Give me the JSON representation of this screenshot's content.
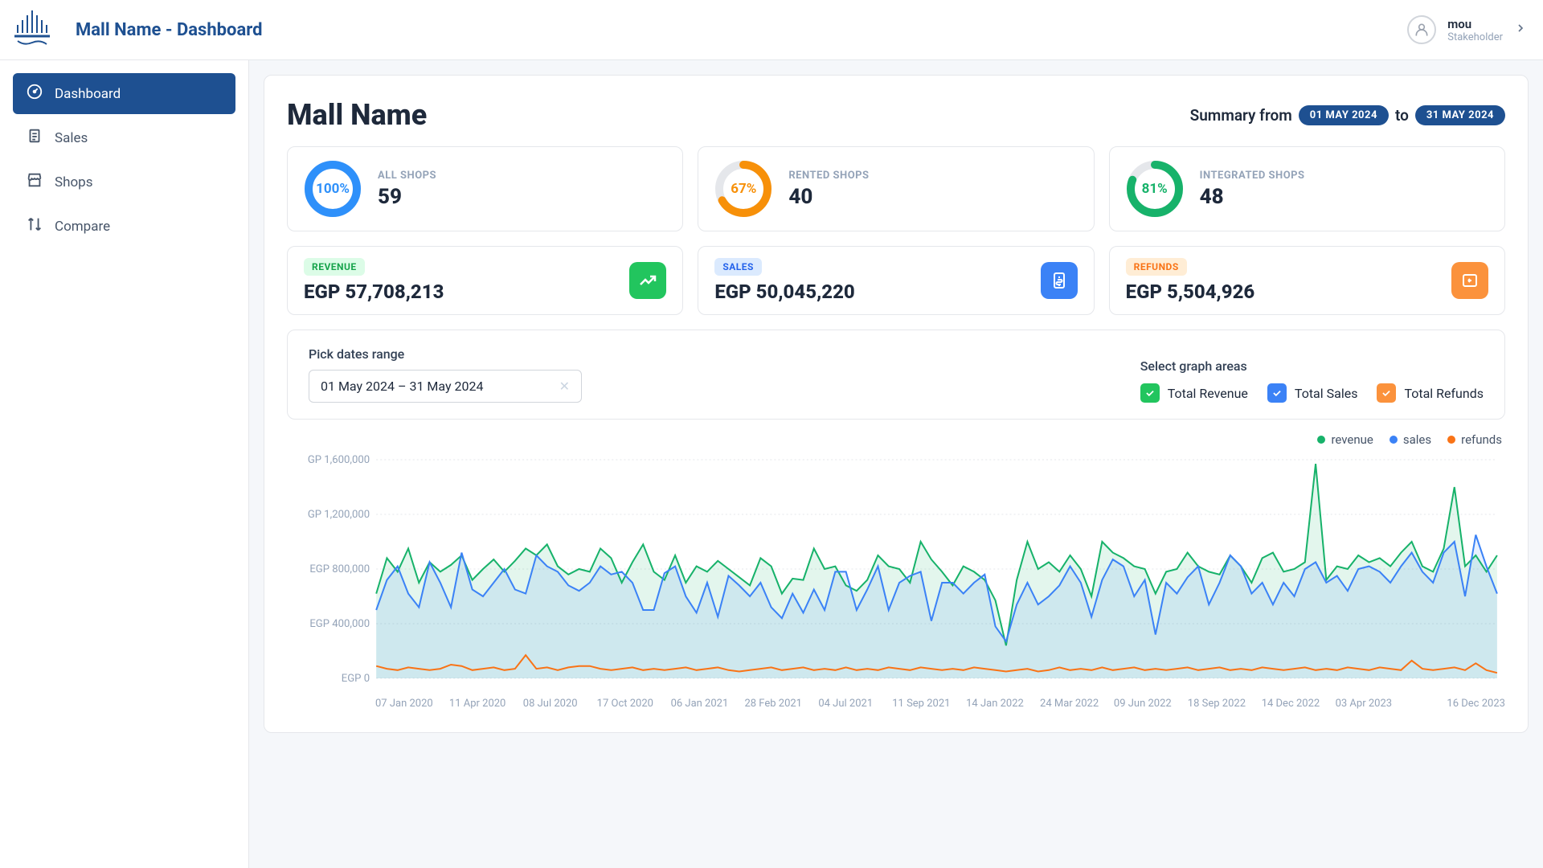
{
  "header": {
    "title": "Mall Name - Dashboard",
    "user": {
      "name": "mou",
      "role": "Stakeholder"
    }
  },
  "sidebar": {
    "items": [
      {
        "label": "Dashboard",
        "icon": "speedometer",
        "active": true
      },
      {
        "label": "Sales",
        "icon": "clipboard",
        "active": false
      },
      {
        "label": "Shops",
        "icon": "storefront",
        "active": false
      },
      {
        "label": "Compare",
        "icon": "compare",
        "active": false
      }
    ]
  },
  "titleRow": {
    "mallName": "Mall Name",
    "summaryPrefix": "Summary from",
    "dateFrom": "01 MAY 2024",
    "to": "to",
    "dateTo": "31 MAY 2024"
  },
  "shopStats": [
    {
      "label": "ALL SHOPS",
      "value": "59",
      "pct": 100,
      "pctLabel": "100%",
      "color": "#2e90fa"
    },
    {
      "label": "RENTED SHOPS",
      "value": "40",
      "pct": 67,
      "pctLabel": "67%",
      "color": "#f79009"
    },
    {
      "label": "INTEGRATED SHOPS",
      "value": "48",
      "pct": 81,
      "pctLabel": "81%",
      "color": "#17b26a"
    }
  ],
  "moneyStats": [
    {
      "badge": "REVENUE",
      "badgeClass": "badge-green",
      "value": "EGP 57,708,213",
      "iconClass": "icon-green",
      "icon": "trending"
    },
    {
      "badge": "SALES",
      "badgeClass": "badge-blue",
      "value": "EGP 50,045,220",
      "iconClass": "icon-blue",
      "icon": "receipt"
    },
    {
      "badge": "REFUNDS",
      "badgeClass": "badge-orange",
      "value": "EGP 5,504,926",
      "iconClass": "icon-orange",
      "icon": "refund"
    }
  ],
  "controls": {
    "pickLabel": "Pick dates range",
    "dateRange": "01 May 2024 – 31 May 2024",
    "selectLabel": "Select graph areas",
    "checks": [
      {
        "label": "Total Revenue",
        "class": "check-green"
      },
      {
        "label": "Total Sales",
        "class": "check-blue"
      },
      {
        "label": "Total Refunds",
        "class": "check-orange"
      }
    ]
  },
  "chart": {
    "legend": [
      {
        "label": "revenue",
        "color": "#17b26a"
      },
      {
        "label": "sales",
        "color": "#3b82f6"
      },
      {
        "label": "refunds",
        "color": "#f97316"
      }
    ],
    "yAxis": {
      "ticks": [
        {
          "label": "GP 1,600,000",
          "v": 1600000
        },
        {
          "label": "GP 1,200,000",
          "v": 1200000
        },
        {
          "label": "EGP 800,000",
          "v": 800000
        },
        {
          "label": "EGP 400,000",
          "v": 400000
        },
        {
          "label": "EGP 0",
          "v": 0
        }
      ],
      "min": 0,
      "max": 1600000
    },
    "xLabels": [
      "07 Jan 2020",
      "11 Apr 2020",
      "08 Jul 2020",
      "17 Oct 2020",
      "06 Jan 2021",
      "28 Feb 2021",
      "04 Jul 2021",
      "11 Sep 2021",
      "14 Jan 2022",
      "24 Mar 2022",
      "09 Jun 2022",
      "18 Sep 2022",
      "14 Dec 2022",
      "03 Apr 2023",
      "16 Dec 2023"
    ],
    "colors": {
      "revenue": "#17b26a",
      "sales": "#3b82f6",
      "refunds": "#f97316"
    },
    "series": {
      "revenue": [
        620000,
        880000,
        780000,
        950000,
        700000,
        850000,
        780000,
        830000,
        900000,
        720000,
        800000,
        870000,
        780000,
        860000,
        950000,
        900000,
        980000,
        820000,
        760000,
        800000,
        780000,
        950000,
        880000,
        700000,
        850000,
        980000,
        780000,
        720000,
        900000,
        700000,
        820000,
        780000,
        860000,
        800000,
        740000,
        680000,
        880000,
        820000,
        620000,
        730000,
        720000,
        950000,
        800000,
        820000,
        680000,
        640000,
        720000,
        900000,
        820000,
        800000,
        700000,
        1000000,
        870000,
        780000,
        680000,
        820000,
        780000,
        720000,
        570000,
        240000,
        720000,
        1000000,
        800000,
        850000,
        780000,
        900000,
        800000,
        600000,
        1000000,
        920000,
        880000,
        820000,
        800000,
        620000,
        780000,
        800000,
        920000,
        820000,
        780000,
        760000,
        900000,
        820000,
        700000,
        880000,
        920000,
        780000,
        800000,
        850000,
        1570000,
        720000,
        820000,
        800000,
        900000,
        850000,
        880000,
        820000,
        920000,
        1000000,
        820000,
        780000,
        950000,
        1400000,
        820000,
        900000,
        780000,
        900000
      ],
      "sales": [
        500000,
        720000,
        820000,
        620000,
        520000,
        850000,
        700000,
        520000,
        920000,
        650000,
        600000,
        700000,
        800000,
        650000,
        620000,
        900000,
        820000,
        780000,
        680000,
        640000,
        700000,
        820000,
        760000,
        780000,
        700000,
        500000,
        500000,
        770000,
        820000,
        600000,
        480000,
        700000,
        450000,
        750000,
        680000,
        600000,
        700000,
        520000,
        440000,
        620000,
        480000,
        650000,
        500000,
        780000,
        780000,
        500000,
        650000,
        820000,
        500000,
        700000,
        750000,
        780000,
        420000,
        700000,
        700000,
        620000,
        700000,
        760000,
        380000,
        270000,
        540000,
        700000,
        540000,
        600000,
        680000,
        820000,
        700000,
        450000,
        720000,
        870000,
        820000,
        600000,
        720000,
        320000,
        700000,
        620000,
        740000,
        820000,
        540000,
        700000,
        900000,
        820000,
        620000,
        700000,
        540000,
        700000,
        600000,
        800000,
        850000,
        700000,
        750000,
        640000,
        800000,
        820000,
        780000,
        700000,
        820000,
        920000,
        780000,
        700000,
        920000,
        1000000,
        600000,
        1050000,
        820000,
        620000
      ],
      "refunds": [
        90000,
        70000,
        60000,
        80000,
        70000,
        60000,
        70000,
        100000,
        90000,
        60000,
        70000,
        80000,
        60000,
        70000,
        170000,
        70000,
        80000,
        60000,
        80000,
        90000,
        90000,
        70000,
        60000,
        70000,
        80000,
        60000,
        70000,
        60000,
        70000,
        80000,
        60000,
        70000,
        80000,
        60000,
        50000,
        60000,
        70000,
        80000,
        60000,
        70000,
        80000,
        60000,
        70000,
        60000,
        80000,
        60000,
        70000,
        60000,
        80000,
        70000,
        60000,
        80000,
        70000,
        60000,
        70000,
        60000,
        80000,
        70000,
        60000,
        50000,
        60000,
        70000,
        50000,
        60000,
        80000,
        60000,
        70000,
        60000,
        80000,
        60000,
        70000,
        80000,
        60000,
        70000,
        60000,
        70000,
        80000,
        60000,
        70000,
        80000,
        60000,
        70000,
        60000,
        80000,
        70000,
        60000,
        70000,
        80000,
        60000,
        70000,
        60000,
        80000,
        70000,
        60000,
        80000,
        70000,
        60000,
        130000,
        70000,
        60000,
        70000,
        80000,
        60000,
        110000,
        60000,
        40000
      ]
    }
  }
}
